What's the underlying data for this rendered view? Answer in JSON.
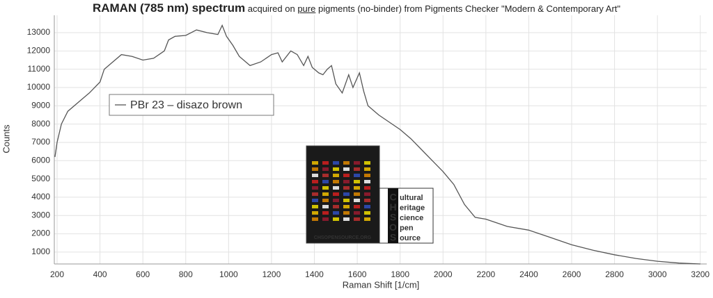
{
  "chart_data": {
    "type": "line",
    "title": [
      "RAMAN (785 nm) spectrum",
      "acquired on",
      "pure",
      "pigments (no-binder) from Pigments Checker \"Modern & Contemporary Art\""
    ],
    "xlabel": "Raman Shift [1/cm]",
    "ylabel": "Counts",
    "xlim": [
      187,
      3230
    ],
    "ylim": [
      350,
      13950
    ],
    "xticks": [
      200,
      400,
      600,
      800,
      1000,
      1200,
      1400,
      1600,
      1800,
      2000,
      2200,
      2400,
      2600,
      2800,
      3000,
      3200
    ],
    "yticks": [
      1000,
      2000,
      3000,
      4000,
      5000,
      6000,
      7000,
      8000,
      9000,
      10000,
      11000,
      12000,
      13000
    ],
    "grid": true,
    "legend": "upper left",
    "x": [
      190,
      200,
      220,
      250,
      300,
      350,
      400,
      420,
      450,
      500,
      550,
      600,
      650,
      700,
      720,
      750,
      800,
      850,
      900,
      950,
      970,
      990,
      1020,
      1050,
      1100,
      1150,
      1200,
      1230,
      1250,
      1290,
      1320,
      1350,
      1370,
      1390,
      1420,
      1440,
      1460,
      1480,
      1500,
      1530,
      1560,
      1580,
      1610,
      1630,
      1650,
      1700,
      1750,
      1800,
      1850,
      1900,
      1950,
      2000,
      2050,
      2100,
      2150,
      2200,
      2250,
      2300,
      2400,
      2500,
      2600,
      2700,
      2800,
      2900,
      3000,
      3100,
      3200
    ],
    "series": [
      {
        "name": "PBr 23 – disazo brown",
        "color": "#555555",
        "values": [
          6200,
          7000,
          8000,
          8700,
          9200,
          9700,
          10300,
          11000,
          11300,
          11800,
          11700,
          11500,
          11600,
          12000,
          12600,
          12800,
          12850,
          13150,
          13000,
          12900,
          13400,
          12800,
          12300,
          11700,
          11200,
          11400,
          11800,
          11900,
          11400,
          12000,
          11800,
          11200,
          11700,
          11100,
          10800,
          10700,
          11000,
          11200,
          10200,
          9700,
          10700,
          10000,
          10800,
          9800,
          9000,
          8500,
          8100,
          7700,
          7200,
          6600,
          6000,
          5400,
          4700,
          3600,
          2900,
          2800,
          2600,
          2400,
          2200,
          1800,
          1400,
          1100,
          850,
          650,
          500,
          400,
          350
        ]
      }
    ],
    "logo": [
      {
        "letter": "C",
        "rest": "ultural"
      },
      {
        "letter": "H",
        "rest": "eritage"
      },
      {
        "letter": "S",
        "rest": "cience"
      },
      {
        "letter": "O",
        "rest": "pen"
      },
      {
        "letter": "S",
        "rest": "ource"
      }
    ],
    "checker_caption": "CHSOPENSOURCE.ORG"
  }
}
